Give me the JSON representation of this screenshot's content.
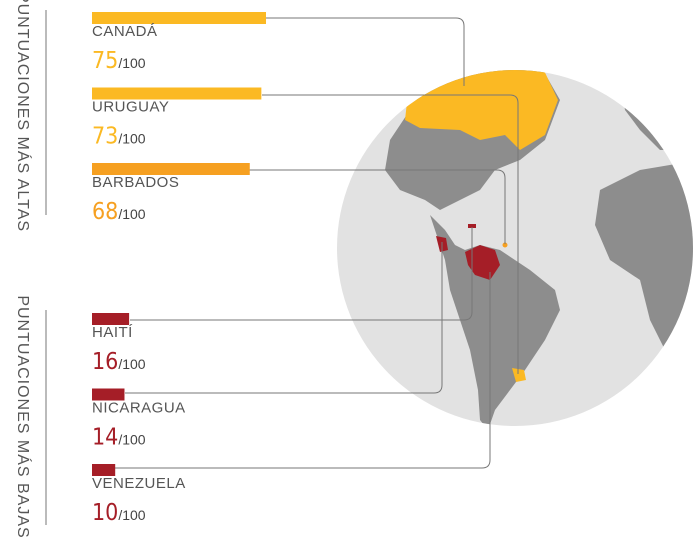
{
  "chart_data": [
    {
      "type": "bar",
      "title": "PUNTUACIONES MÁS ALTAS",
      "categories": [
        "CANADÁ",
        "URUGUAY",
        "BARBADOS"
      ],
      "values": [
        75,
        73,
        68
      ],
      "colors": [
        "#fbb923",
        "#fbb923",
        "#f6a021"
      ],
      "value_suffix": "/100",
      "xlim": [
        0,
        100
      ]
    },
    {
      "type": "bar",
      "title": "PUNTUACIONES MÁS BAJAS",
      "categories": [
        "HAITÍ",
        "NICARAGUA",
        "VENEZUELA"
      ],
      "values": [
        16,
        14,
        10
      ],
      "colors": [
        "#a51e27",
        "#a51e27",
        "#a51e27"
      ],
      "value_suffix": "/100",
      "xlim": [
        0,
        100
      ]
    }
  ]
}
